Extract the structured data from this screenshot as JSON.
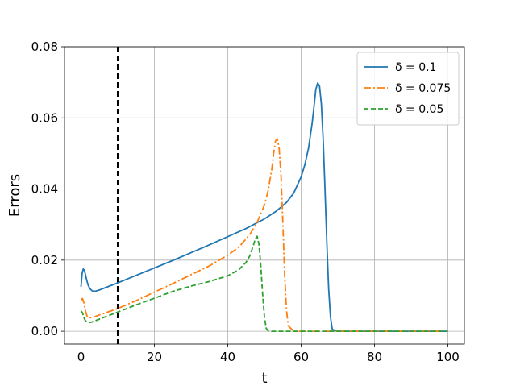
{
  "chart_data": {
    "type": "line",
    "title": "",
    "xlabel": "t",
    "ylabel": "Errors",
    "xlim": [
      -4.5,
      104.5
    ],
    "ylim": [
      -0.0036,
      0.08
    ],
    "xticks": [
      0,
      20,
      40,
      60,
      80,
      100
    ],
    "xtick_labels": [
      "0",
      "20",
      "40",
      "60",
      "80",
      "100"
    ],
    "yticks": [
      0.0,
      0.02,
      0.04,
      0.06,
      0.08
    ],
    "ytick_labels": [
      "0.00",
      "0.02",
      "0.04",
      "0.06",
      "0.08"
    ],
    "grid": true,
    "legend_position": "top-right",
    "vline": {
      "x": 10,
      "style": "dashed",
      "color": "#000000"
    },
    "series": [
      {
        "name": "δ = 0.1",
        "color": "#1f77b4",
        "style": "solid",
        "x": [
          0,
          0.3,
          0.6,
          0.9,
          1.2,
          1.6,
          2,
          2.5,
          3,
          3.5,
          4,
          5,
          6,
          8,
          10,
          15,
          20,
          25,
          30,
          35,
          40,
          45,
          50,
          53,
          56,
          58,
          60,
          61,
          62,
          63,
          63.5,
          64,
          64.5,
          65,
          65.5,
          66,
          66.5,
          67,
          67.5,
          68,
          68.5,
          70,
          80,
          90,
          100
        ],
        "y": [
          0.0125,
          0.0162,
          0.0175,
          0.0172,
          0.016,
          0.0142,
          0.0128,
          0.0119,
          0.0114,
          0.0112,
          0.0113,
          0.0116,
          0.012,
          0.0128,
          0.0136,
          0.0157,
          0.0178,
          0.0199,
          0.0221,
          0.0243,
          0.0266,
          0.0289,
          0.0316,
          0.0336,
          0.0362,
          0.0389,
          0.0434,
          0.0468,
          0.0514,
          0.0585,
          0.0631,
          0.068,
          0.0698,
          0.069,
          0.064,
          0.054,
          0.04,
          0.025,
          0.012,
          0.004,
          0.0005,
          0.0,
          0.0,
          0.0,
          0.0
        ]
      },
      {
        "name": "δ = 0.075",
        "color": "#ff7f0e",
        "style": "dashdot",
        "x": [
          0,
          0.4,
          0.8,
          1.2,
          1.6,
          2,
          2.5,
          3,
          4,
          5,
          7,
          10,
          15,
          20,
          25,
          30,
          35,
          40,
          43,
          46,
          48,
          50,
          51,
          52,
          52.5,
          53,
          53.5,
          54,
          54.5,
          55,
          55.5,
          56,
          56.5,
          58,
          70,
          80,
          90,
          100
        ],
        "y": [
          0.0088,
          0.0092,
          0.008,
          0.0058,
          0.0044,
          0.0039,
          0.0038,
          0.0039,
          0.0042,
          0.0046,
          0.0053,
          0.0064,
          0.0086,
          0.011,
          0.0134,
          0.0159,
          0.0184,
          0.0214,
          0.0236,
          0.0272,
          0.0306,
          0.0355,
          0.0395,
          0.0455,
          0.05,
          0.0535,
          0.0541,
          0.0515,
          0.044,
          0.031,
          0.016,
          0.006,
          0.0015,
          0.0,
          0.0,
          0.0,
          0.0,
          0.0
        ]
      },
      {
        "name": "δ = 0.05",
        "color": "#2ca02c",
        "style": "dashed",
        "x": [
          0,
          0.4,
          0.8,
          1.2,
          1.6,
          2,
          2.5,
          3,
          4,
          5,
          7,
          10,
          15,
          20,
          25,
          30,
          35,
          40,
          43,
          45,
          46,
          47,
          47.5,
          48,
          48.5,
          49,
          49.5,
          50,
          50.5,
          51,
          51.5,
          52,
          60,
          70,
          80,
          90,
          100
        ],
        "y": [
          0.0057,
          0.0052,
          0.0038,
          0.003,
          0.0026,
          0.0025,
          0.0025,
          0.0026,
          0.003,
          0.0034,
          0.0042,
          0.0054,
          0.0074,
          0.0093,
          0.0112,
          0.0127,
          0.014,
          0.0156,
          0.0173,
          0.0194,
          0.0212,
          0.0242,
          0.026,
          0.0267,
          0.0245,
          0.0185,
          0.0105,
          0.004,
          0.0008,
          0.0001,
          0.0,
          0.0,
          0.0,
          0.0,
          0.0,
          0.0,
          0.0
        ]
      }
    ]
  }
}
